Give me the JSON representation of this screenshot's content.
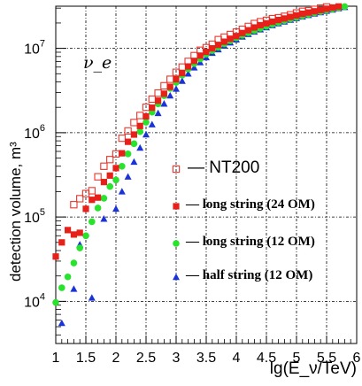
{
  "chart_data": {
    "type": "scatter",
    "xlabel": "lg(E_ν/TeV)",
    "ylabel": "detection volume, m³",
    "annotation": "ν_e",
    "xlim": [
      1,
      6
    ],
    "ylim_log10": [
      3.5,
      7.5
    ],
    "y_scale": "log",
    "grid": true,
    "x_ticks": [
      "1",
      "1.5",
      "2",
      "2.5",
      "3",
      "3.5",
      "4",
      "4.5",
      "5",
      "5.5",
      "6"
    ],
    "y_ticks": [
      {
        "value": 10000,
        "base": "10",
        "exp": "4"
      },
      {
        "value": 100000,
        "base": "10",
        "exp": "5"
      },
      {
        "value": 1000000,
        "base": "10",
        "exp": "6"
      },
      {
        "value": 10000000,
        "base": "10",
        "exp": "7"
      }
    ],
    "legend_placement": "lower-right inside",
    "series": [
      {
        "name": "NT200",
        "marker": "open-square",
        "color": "#e8372e",
        "x": [
          1.3,
          1.4,
          1.5,
          1.6,
          1.7,
          1.8,
          1.9,
          2.0,
          2.1,
          2.2,
          2.3,
          2.4,
          2.5,
          2.6,
          2.7,
          2.8,
          2.9,
          3.0,
          3.1,
          3.2,
          3.3,
          3.4,
          3.5,
          3.6,
          3.7,
          3.8,
          3.9,
          4.0,
          4.1,
          4.2,
          4.3,
          4.4,
          4.5,
          4.6,
          4.7,
          4.8,
          4.9,
          5.0,
          5.1,
          5.2,
          5.3,
          5.4,
          5.5,
          5.6,
          5.7,
          5.8,
          5.9,
          6.0
        ],
        "y": [
          140000,
          165000,
          190000,
          205000,
          300000,
          400000,
          480000,
          560000,
          860000,
          1050000,
          1320000,
          1600000,
          2000000,
          2500000,
          2950000,
          3600000,
          4300000,
          5200000,
          6000000,
          7000000,
          8200000,
          9500000,
          10200000,
          11200000,
          12700000,
          13600000,
          14600000,
          15600000,
          16800000,
          18200000,
          19700000,
          20700000,
          21500000,
          22500000,
          23100000,
          24000000,
          25000000,
          26300000,
          27500000,
          28000000,
          29000000,
          30000000,
          31000000,
          31800000,
          32800000,
          33800000,
          35000000,
          36000000
        ]
      },
      {
        "name": "long string (24 OM)",
        "marker": "filled-square",
        "color": "#e8201a",
        "x": [
          1.0,
          1.1,
          1.2,
          1.3,
          1.4,
          1.5,
          1.6,
          1.7,
          1.8,
          1.9,
          2.0,
          2.1,
          2.2,
          2.3,
          2.4,
          2.5,
          2.6,
          2.7,
          2.8,
          2.9,
          3.0,
          3.1,
          3.2,
          3.3,
          3.4,
          3.5,
          3.6,
          3.7,
          3.8,
          3.9,
          4.0,
          4.1,
          4.2,
          4.3,
          4.4,
          4.5,
          4.6,
          4.7,
          4.8,
          4.9,
          5.0,
          5.1,
          5.2,
          5.3,
          5.4,
          5.5,
          5.6,
          5.7,
          5.8,
          5.9,
          6.0
        ],
        "y": [
          34000,
          50000,
          70000,
          62000,
          65000,
          125000,
          160000,
          170000,
          260000,
          310000,
          380000,
          570000,
          780000,
          950000,
          1200000,
          1560000,
          1980000,
          2400000,
          2900000,
          3500000,
          4300000,
          5100000,
          6100000,
          7100000,
          8200000,
          9100000,
          10000000,
          11000000,
          12000000,
          13000000,
          14000000,
          15200000,
          16400000,
          17700000,
          18800000,
          19800000,
          20700000,
          21700000,
          22600000,
          23600000,
          24600000,
          25700000,
          26600000,
          27500000,
          28500000,
          29500000,
          30500000,
          31400000,
          32400000,
          33400000,
          34500000
        ]
      },
      {
        "name": "long string (12 OM)",
        "marker": "filled-circle",
        "color": "#27e32b",
        "x": [
          1.0,
          1.1,
          1.2,
          1.3,
          1.4,
          1.5,
          1.6,
          1.7,
          1.8,
          1.9,
          2.0,
          2.1,
          2.2,
          2.3,
          2.4,
          2.5,
          2.6,
          2.7,
          2.8,
          2.9,
          3.0,
          3.1,
          3.2,
          3.3,
          3.4,
          3.5,
          3.6,
          3.7,
          3.8,
          3.9,
          4.0,
          4.1,
          4.2,
          4.3,
          4.4,
          4.5,
          4.6,
          4.7,
          4.8,
          4.9,
          5.0,
          5.1,
          5.2,
          5.3,
          5.4,
          5.5,
          5.6,
          5.7,
          5.8,
          5.9,
          6.0
        ],
        "y": [
          9700,
          14500,
          19500,
          28500,
          43000,
          60000,
          88000,
          128000,
          167000,
          230000,
          275000,
          400000,
          560000,
          740000,
          1030000,
          1330000,
          1750000,
          2200000,
          2750000,
          3350000,
          3950000,
          4800000,
          5700000,
          6600000,
          7500000,
          8500000,
          9400000,
          10300000,
          11300000,
          12300000,
          13300000,
          14300000,
          15300000,
          16300000,
          17300000,
          18300000,
          19300000,
          20300000,
          21300000,
          22300000,
          23300000,
          24300000,
          25300000,
          26300000,
          27300000,
          28300000,
          29300000,
          30300000,
          31300000,
          32300000,
          33300000
        ]
      },
      {
        "name": "half string (12 OM)",
        "marker": "filled-triangle",
        "color": "#1a33d6",
        "x": [
          1.1,
          1.3,
          1.4,
          1.6,
          1.8,
          2.0,
          2.1,
          2.2,
          2.3,
          2.4,
          2.5,
          2.6,
          2.7,
          2.8,
          2.9,
          3.0,
          3.1,
          3.2,
          3.3,
          3.4,
          3.5,
          3.6,
          3.7,
          3.8,
          3.9,
          4.0,
          4.1,
          4.2,
          4.3,
          4.4,
          4.5,
          4.6,
          4.7,
          4.8,
          4.9,
          5.0,
          5.1,
          5.2,
          5.3,
          5.4,
          5.5,
          5.6,
          5.7,
          5.8,
          5.9,
          6.0
        ],
        "y": [
          5500,
          14000,
          47000,
          11000,
          95000,
          125000,
          200000,
          300000,
          450000,
          660000,
          950000,
          1250000,
          1700000,
          2200000,
          2750000,
          3300000,
          4100000,
          5000000,
          5900000,
          6800000,
          7800000,
          8800000,
          9700000,
          10700000,
          11700000,
          12700000,
          13700000,
          14700000,
          15700000,
          16700000,
          17700000,
          18700000,
          19700000,
          20700000,
          21700000,
          22700000,
          23700000,
          24700000,
          25700000,
          26700000,
          27700000,
          28700000,
          29700000,
          30700000,
          31700000,
          32700000
        ]
      }
    ]
  }
}
